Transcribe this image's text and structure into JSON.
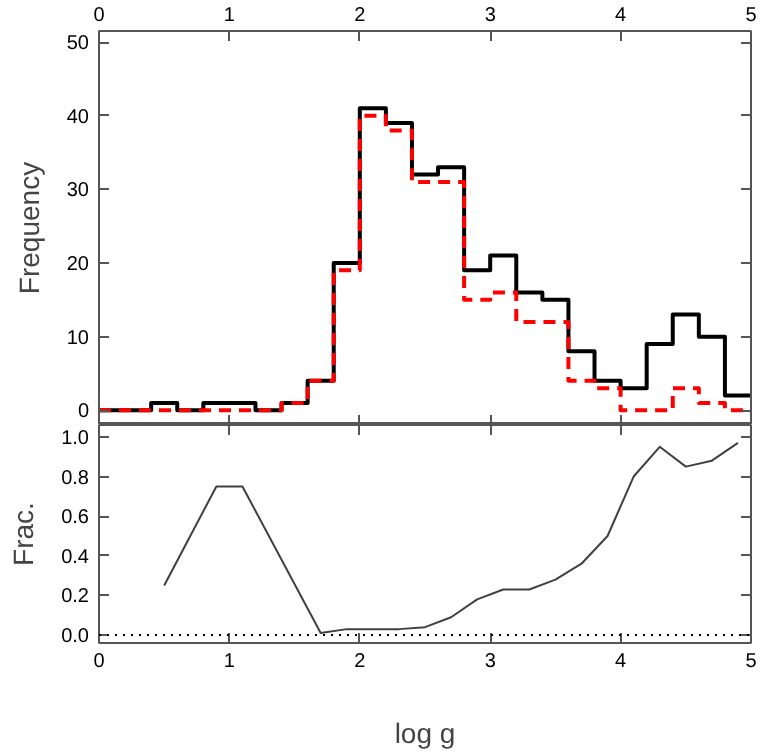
{
  "chart_data": [
    {
      "type": "histogram",
      "ylabel": "Frequency",
      "bins": [
        0,
        0.2,
        0.4,
        0.6,
        0.8,
        1.0,
        1.2,
        1.4,
        1.6,
        1.8,
        2.0,
        2.2,
        2.4,
        2.6,
        2.8,
        3.0,
        3.2,
        3.4,
        3.6,
        3.8,
        4.0,
        4.2,
        4.4,
        4.6,
        4.8,
        5.0
      ],
      "series": [
        {
          "color": "#000000",
          "line_style": "solid",
          "values": [
            0,
            0,
            1,
            0,
            1,
            1,
            0,
            1,
            4,
            20,
            41,
            39,
            32,
            33,
            19,
            21,
            16,
            15,
            8,
            4,
            3,
            9,
            13,
            10,
            2
          ]
        },
        {
          "color": "#ff0000",
          "line_style": "dashed",
          "values": [
            0,
            0,
            0,
            0,
            0,
            0,
            0,
            1,
            4,
            19,
            40,
            38,
            31,
            31,
            15,
            16,
            12,
            12,
            4,
            3,
            0,
            0,
            3,
            1,
            0
          ]
        }
      ],
      "xlim": [
        0,
        5
      ],
      "xticks": [
        0,
        1,
        2,
        3,
        4,
        5
      ],
      "ylim": [
        -2,
        51.5
      ],
      "yticks": [
        0,
        10,
        20,
        30,
        40,
        50
      ],
      "grid": false
    },
    {
      "type": "line",
      "xlabel": "log g",
      "ylabel": "Frac.",
      "x": [
        0.5,
        0.9,
        1.1,
        1.7,
        1.9,
        2.1,
        2.3,
        2.5,
        2.7,
        2.9,
        3.1,
        3.3,
        3.5,
        3.7,
        3.9,
        4.1,
        4.3,
        4.5,
        4.7,
        4.9
      ],
      "series": [
        {
          "color": "#404040",
          "line_style": "solid",
          "values": [
            0.25,
            0.75,
            0.75,
            0.01,
            0.03,
            0.03,
            0.03,
            0.04,
            0.09,
            0.18,
            0.23,
            0.23,
            0.28,
            0.36,
            0.5,
            0.8,
            0.95,
            0.85,
            0.88,
            0.97
          ]
        }
      ],
      "ref_lines": [
        {
          "axis": "y",
          "value": 0,
          "label": null,
          "color": "#000000",
          "line_style": "dotted"
        }
      ],
      "xlim": [
        0,
        5
      ],
      "xticks": [
        0,
        1,
        2,
        3,
        4,
        5
      ],
      "ylim": [
        -0.04,
        1.06
      ],
      "yticks": [
        {
          "value": 0,
          "label": "0.0"
        },
        {
          "value": 0.2,
          "label": "0.2"
        },
        {
          "value": 0.4,
          "label": "0.4"
        },
        {
          "value": 0.6,
          "label": "0.6"
        },
        {
          "value": 0.8,
          "label": "0.8"
        },
        {
          "value": 1.0,
          "label": "1.0"
        }
      ],
      "grid": false
    }
  ]
}
